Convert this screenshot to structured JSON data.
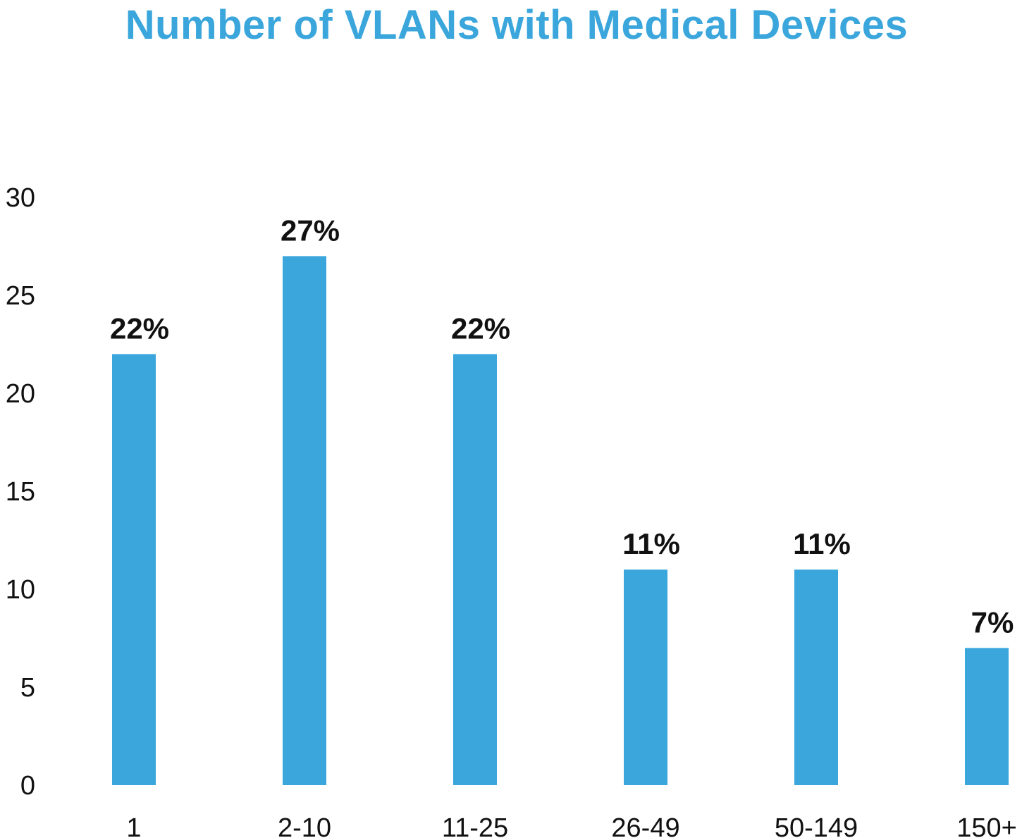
{
  "colors": {
    "title": "#3aa6dc",
    "bar": "#3aa6dc",
    "text": "#111111"
  },
  "chart_data": {
    "type": "bar",
    "title": "Number of VLANs with Medical Devices",
    "xlabel": "",
    "ylabel": "",
    "categories": [
      "1",
      "2-10",
      "11-25",
      "26-49",
      "50-149",
      "150+"
    ],
    "values": [
      22,
      27,
      22,
      11,
      11,
      7
    ],
    "data_labels": [
      "22%",
      "27%",
      "22%",
      "11%",
      "11%",
      "7%"
    ],
    "ylim": [
      0,
      30
    ],
    "yticks": [
      "0",
      "5",
      "10",
      "15",
      "20",
      "25",
      "30"
    ],
    "grid": false,
    "legend": "none"
  }
}
